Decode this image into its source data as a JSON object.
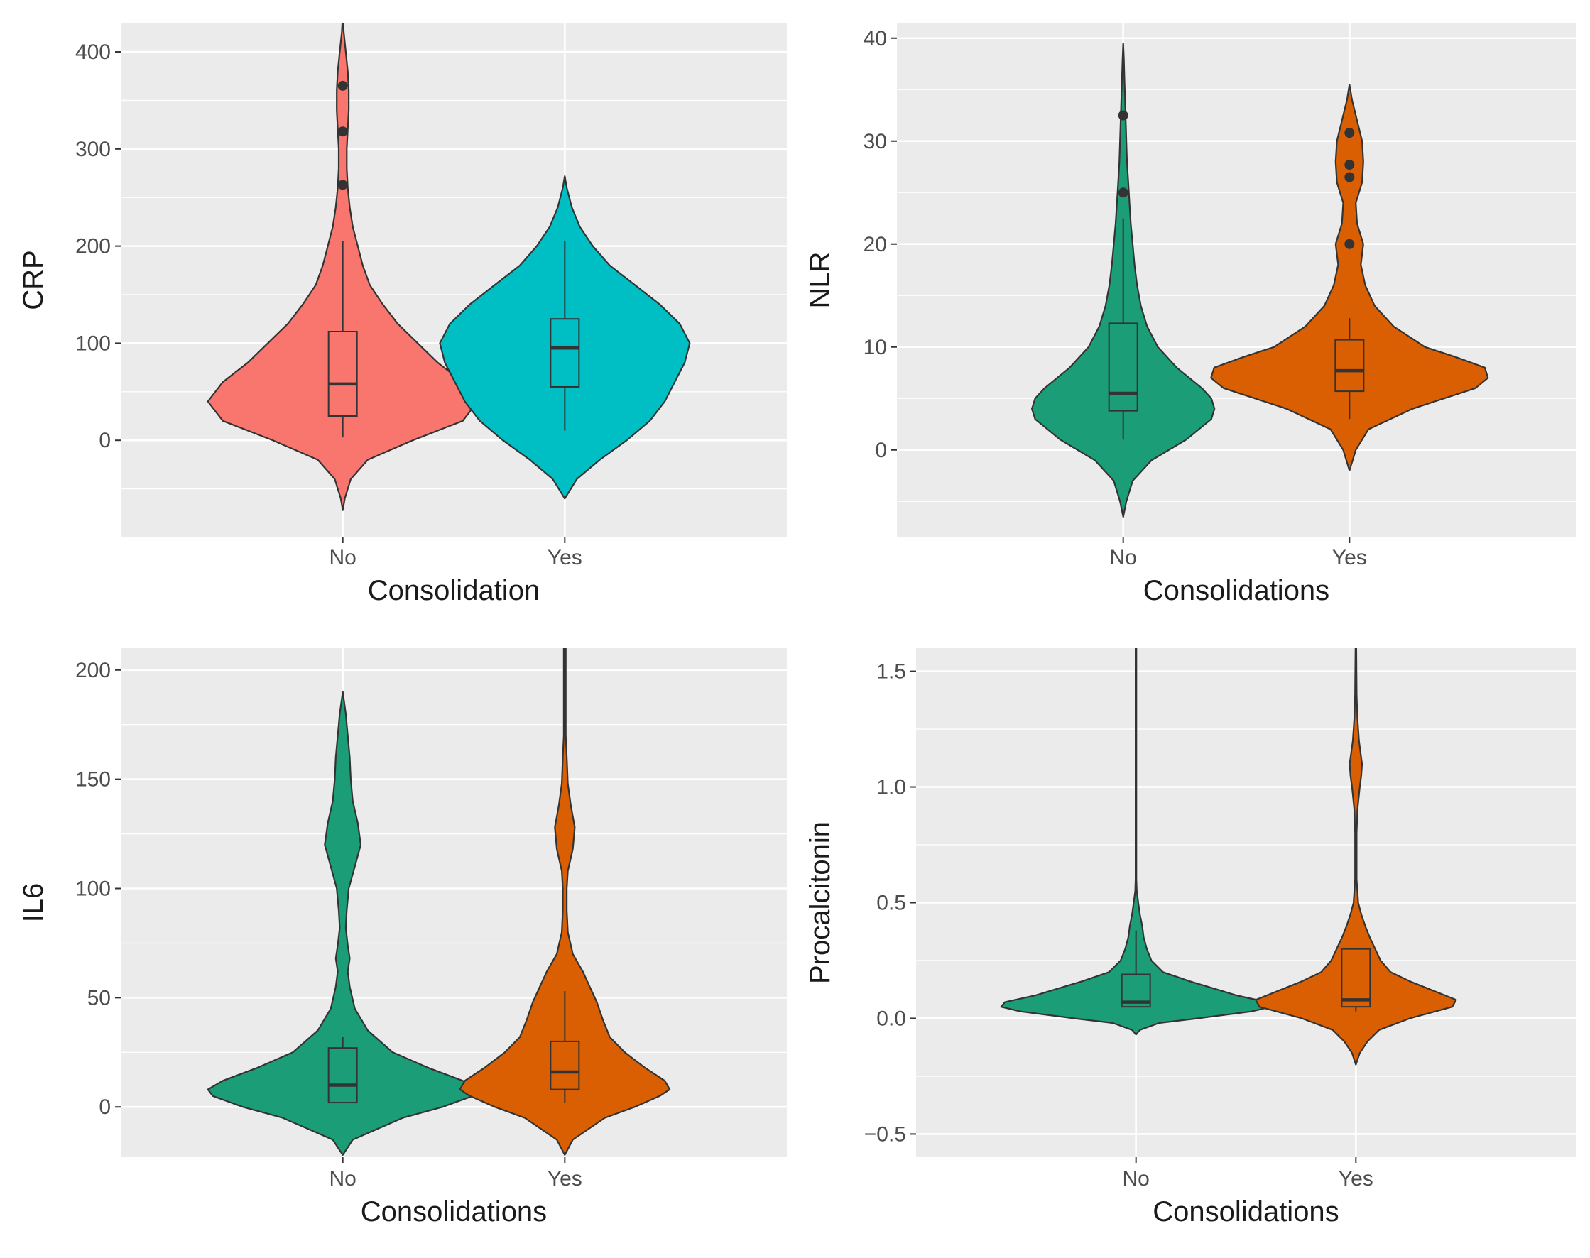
{
  "chart_data": [
    {
      "type": "violin",
      "ylabel": "CRP",
      "xlabel": "Consolidation",
      "categories": [
        "No",
        "Yes"
      ],
      "ylim": [
        -100,
        430
      ],
      "yticks": [
        0,
        100,
        200,
        300,
        400
      ],
      "ytick_labels": [
        "0",
        "100",
        "200",
        "300",
        "400"
      ],
      "grid": true,
      "fill_colors": [
        "#F8766D",
        "#00BFC4"
      ],
      "groups": [
        {
          "name": "No",
          "box": {
            "min": 3,
            "q1": 25,
            "median": 58,
            "q3": 112,
            "max": 205
          },
          "outliers": [
            263,
            318,
            365
          ],
          "density": [
            [
              -72,
              0
            ],
            [
              -60,
              2
            ],
            [
              -40,
              8
            ],
            [
              -20,
              25
            ],
            [
              0,
              70
            ],
            [
              20,
              120
            ],
            [
              40,
              135
            ],
            [
              60,
              120
            ],
            [
              80,
              95
            ],
            [
              100,
              75
            ],
            [
              120,
              55
            ],
            [
              140,
              40
            ],
            [
              160,
              27
            ],
            [
              180,
              20
            ],
            [
              200,
              15
            ],
            [
              220,
              10
            ],
            [
              240,
              7
            ],
            [
              260,
              5
            ],
            [
              280,
              4
            ],
            [
              300,
              4
            ],
            [
              320,
              5
            ],
            [
              340,
              6
            ],
            [
              360,
              6
            ],
            [
              380,
              5
            ],
            [
              400,
              3
            ],
            [
              420,
              1
            ],
            [
              438,
              0
            ]
          ]
        },
        {
          "name": "Yes",
          "box": {
            "min": 10,
            "q1": 55,
            "median": 95,
            "q3": 125,
            "max": 205
          },
          "outliers": [],
          "density": [
            [
              -60,
              0
            ],
            [
              -40,
              12
            ],
            [
              -20,
              35
            ],
            [
              0,
              62
            ],
            [
              20,
              85
            ],
            [
              40,
              100
            ],
            [
              60,
              110
            ],
            [
              80,
              120
            ],
            [
              100,
              125
            ],
            [
              120,
              115
            ],
            [
              140,
              95
            ],
            [
              160,
              70
            ],
            [
              180,
              45
            ],
            [
              200,
              28
            ],
            [
              220,
              15
            ],
            [
              240,
              7
            ],
            [
              260,
              2
            ],
            [
              272,
              0
            ]
          ]
        }
      ]
    },
    {
      "type": "violin",
      "ylabel": "NLR",
      "xlabel": "Consolidations",
      "categories": [
        "No",
        "Yes"
      ],
      "ylim": [
        -8.5,
        41.5
      ],
      "yticks": [
        0,
        10,
        20,
        30,
        40
      ],
      "ytick_labels": [
        "0",
        "10",
        "20",
        "30",
        "40"
      ],
      "grid": true,
      "fill_colors": [
        "#1B9E77",
        "#D95F02"
      ],
      "groups": [
        {
          "name": "No",
          "box": {
            "min": 1,
            "q1": 3.8,
            "median": 5.5,
            "q3": 12.3,
            "max": 22.5
          },
          "outliers": [
            25,
            32.5
          ],
          "density": [
            [
              -6.5,
              0
            ],
            [
              -5,
              5
            ],
            [
              -3,
              15
            ],
            [
              -1,
              45
            ],
            [
              1,
              100
            ],
            [
              3,
              140
            ],
            [
              4,
              145
            ],
            [
              5,
              140
            ],
            [
              6,
              125
            ],
            [
              8,
              85
            ],
            [
              10,
              55
            ],
            [
              12,
              38
            ],
            [
              14,
              28
            ],
            [
              16,
              22
            ],
            [
              18,
              18
            ],
            [
              20,
              15
            ],
            [
              22,
              12
            ],
            [
              24,
              10
            ],
            [
              26,
              8
            ],
            [
              28,
              6
            ],
            [
              30,
              5
            ],
            [
              32,
              4
            ],
            [
              34,
              3
            ],
            [
              36,
              2
            ],
            [
              38,
              1
            ],
            [
              39.5,
              0
            ]
          ]
        },
        {
          "name": "Yes",
          "box": {
            "min": 3,
            "q1": 5.7,
            "median": 7.7,
            "q3": 10.7,
            "max": 12.8
          },
          "outliers": [
            20,
            26.5,
            27.7,
            30.8
          ],
          "density": [
            [
              -2,
              0
            ],
            [
              -1,
              5
            ],
            [
              0,
              10
            ],
            [
              2,
              30
            ],
            [
              4,
              100
            ],
            [
              6,
              200
            ],
            [
              7,
              220
            ],
            [
              8,
              215
            ],
            [
              9,
              170
            ],
            [
              10,
              120
            ],
            [
              12,
              70
            ],
            [
              14,
              40
            ],
            [
              16,
              25
            ],
            [
              18,
              18
            ],
            [
              20,
              22
            ],
            [
              22,
              12
            ],
            [
              24,
              10
            ],
            [
              26,
              20
            ],
            [
              28,
              22
            ],
            [
              30,
              20
            ],
            [
              32,
              12
            ],
            [
              34,
              4
            ],
            [
              35.5,
              0
            ]
          ]
        }
      ]
    },
    {
      "type": "violin",
      "ylabel": "IL6",
      "xlabel": "Consolidations",
      "categories": [
        "No",
        "Yes"
      ],
      "ylim": [
        -23,
        210
      ],
      "yticks": [
        0,
        50,
        100,
        150,
        200
      ],
      "ytick_labels": [
        "0",
        "50",
        "100",
        "150",
        "200"
      ],
      "grid": true,
      "fill_colors": [
        "#1B9E77",
        "#D95F02"
      ],
      "groups": [
        {
          "name": "No",
          "box": {
            "min": 2,
            "q1": 2,
            "median": 10,
            "q3": 27,
            "max": 32
          },
          "outliers": [],
          "density": [
            [
              -22,
              0
            ],
            [
              -15,
              10
            ],
            [
              -5,
              60
            ],
            [
              0,
              100
            ],
            [
              5,
              130
            ],
            [
              8,
              135
            ],
            [
              12,
              120
            ],
            [
              18,
              85
            ],
            [
              25,
              50
            ],
            [
              35,
              25
            ],
            [
              45,
              12
            ],
            [
              55,
              7
            ],
            [
              62,
              5
            ],
            [
              68,
              7
            ],
            [
              74,
              5
            ],
            [
              82,
              3
            ],
            [
              90,
              4
            ],
            [
              100,
              6
            ],
            [
              110,
              12
            ],
            [
              120,
              18
            ],
            [
              130,
              15
            ],
            [
              140,
              10
            ],
            [
              150,
              8
            ],
            [
              160,
              7
            ],
            [
              170,
              5
            ],
            [
              180,
              3
            ],
            [
              190,
              0
            ]
          ]
        },
        {
          "name": "Yes",
          "box": {
            "min": 2,
            "q1": 8,
            "median": 16,
            "q3": 30,
            "max": 53
          },
          "outliers": [],
          "density": [
            [
              -22,
              0
            ],
            [
              -15,
              8
            ],
            [
              -5,
              40
            ],
            [
              0,
              70
            ],
            [
              5,
              95
            ],
            [
              8,
              105
            ],
            [
              12,
              100
            ],
            [
              18,
              80
            ],
            [
              25,
              60
            ],
            [
              32,
              45
            ],
            [
              40,
              38
            ],
            [
              48,
              32
            ],
            [
              55,
              25
            ],
            [
              62,
              18
            ],
            [
              70,
              8
            ],
            [
              80,
              3
            ],
            [
              90,
              2
            ],
            [
              100,
              2
            ],
            [
              108,
              3
            ],
            [
              118,
              8
            ],
            [
              128,
              10
            ],
            [
              138,
              6
            ],
            [
              148,
              3
            ],
            [
              160,
              2
            ],
            [
              170,
              1
            ],
            [
              180,
              1
            ],
            [
              195,
              1
            ],
            [
              210,
              1
            ]
          ]
        }
      ]
    },
    {
      "type": "violin",
      "ylabel": "Procalcitonin",
      "xlabel": "Consolidations",
      "categories": [
        "No",
        "Yes"
      ],
      "ylim": [
        -0.6,
        1.6
      ],
      "yticks": [
        -0.5,
        0.0,
        0.5,
        1.0,
        1.5
      ],
      "ytick_labels": [
        "−0.5",
        "0.0",
        "0.5",
        "1.0",
        "1.5"
      ],
      "grid": true,
      "fill_colors": [
        "#1B9E77",
        "#D95F02"
      ],
      "groups": [
        {
          "name": "No",
          "box": {
            "min": 0.05,
            "q1": 0.05,
            "median": 0.07,
            "q3": 0.19,
            "max": 0.38
          },
          "outliers": [],
          "density": [
            [
              -0.07,
              0
            ],
            [
              -0.05,
              5
            ],
            [
              -0.02,
              30
            ],
            [
              0.0,
              80
            ],
            [
              0.03,
              150
            ],
            [
              0.05,
              175
            ],
            [
              0.07,
              170
            ],
            [
              0.1,
              130
            ],
            [
              0.13,
              100
            ],
            [
              0.16,
              70
            ],
            [
              0.2,
              35
            ],
            [
              0.25,
              20
            ],
            [
              0.3,
              14
            ],
            [
              0.35,
              10
            ],
            [
              0.4,
              8
            ],
            [
              0.45,
              5
            ],
            [
              0.5,
              3
            ],
            [
              0.55,
              1
            ],
            [
              0.6,
              0.5
            ],
            [
              0.8,
              0.5
            ],
            [
              1.0,
              0.5
            ],
            [
              1.2,
              0.5
            ],
            [
              1.4,
              0.5
            ],
            [
              1.6,
              0.5
            ]
          ]
        },
        {
          "name": "Yes",
          "box": {
            "min": 0.03,
            "q1": 0.05,
            "median": 0.08,
            "q3": 0.3,
            "max": 0.3
          },
          "outliers": [],
          "density": [
            [
              -0.2,
              0
            ],
            [
              -0.15,
              5
            ],
            [
              -0.1,
              15
            ],
            [
              -0.05,
              30
            ],
            [
              0.0,
              70
            ],
            [
              0.05,
              125
            ],
            [
              0.08,
              130
            ],
            [
              0.12,
              100
            ],
            [
              0.16,
              70
            ],
            [
              0.2,
              45
            ],
            [
              0.25,
              32
            ],
            [
              0.3,
              25
            ],
            [
              0.35,
              18
            ],
            [
              0.4,
              12
            ],
            [
              0.45,
              7
            ],
            [
              0.5,
              3
            ],
            [
              0.6,
              1
            ],
            [
              0.8,
              1
            ],
            [
              0.9,
              2
            ],
            [
              1.0,
              5
            ],
            [
              1.05,
              7
            ],
            [
              1.1,
              8
            ],
            [
              1.15,
              6
            ],
            [
              1.2,
              4
            ],
            [
              1.3,
              2
            ],
            [
              1.4,
              1
            ],
            [
              1.6,
              0.5
            ]
          ]
        }
      ]
    }
  ]
}
